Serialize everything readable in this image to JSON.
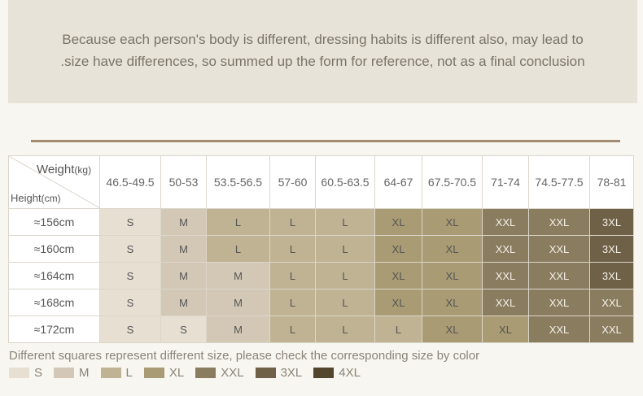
{
  "notice": {
    "line1": "Because each person's body is different, dressing habits is different also, may lead to",
    "line2": ".size have differences, so summed up the form for reference, not as a final conclusion"
  },
  "table": {
    "weight_label": "Weight",
    "weight_unit": "(kg)",
    "height_label": "Height",
    "height_unit": "(cm)",
    "columns": [
      "46.5-49.5",
      "50-53",
      "53.5-56.5",
      "57-60",
      "60.5-63.5",
      "64-67",
      "67.5-70.5",
      "71-74",
      "74.5-77.5",
      "78-81"
    ],
    "rows": [
      {
        "height": "≈156cm",
        "sizes": [
          "S",
          "M",
          "L",
          "L",
          "L",
          "XL",
          "XL",
          "XXL",
          "XXL",
          "3XL"
        ]
      },
      {
        "height": "≈160cm",
        "sizes": [
          "S",
          "M",
          "L",
          "L",
          "L",
          "XL",
          "XL",
          "XXL",
          "XXL",
          "3XL"
        ]
      },
      {
        "height": "≈164cm",
        "sizes": [
          "S",
          "M",
          "M",
          "L",
          "L",
          "XL",
          "XL",
          "XXL",
          "XXL",
          "3XL"
        ]
      },
      {
        "height": "≈168cm",
        "sizes": [
          "S",
          "M",
          "M",
          "L",
          "L",
          "XL",
          "XL",
          "XXL",
          "XXL",
          "XXL"
        ]
      },
      {
        "height": "≈172cm",
        "sizes": [
          "S",
          "S",
          "M",
          "L",
          "L",
          "L",
          "XL",
          "XL",
          "XXL",
          "XXL"
        ]
      }
    ]
  },
  "footer": {
    "note": "Different squares represent different size, please check the corresponding size by color",
    "legend": [
      {
        "label": "S",
        "color": "#e6dfd2"
      },
      {
        "label": "M",
        "color": "#d3c8b5"
      },
      {
        "label": "L",
        "color": "#c0b393"
      },
      {
        "label": "XL",
        "color": "#a99b73"
      },
      {
        "label": "XXL",
        "color": "#8a7c5f"
      },
      {
        "label": "3XL",
        "color": "#6e6148"
      },
      {
        "label": "4XL",
        "color": "#52462f"
      }
    ]
  }
}
